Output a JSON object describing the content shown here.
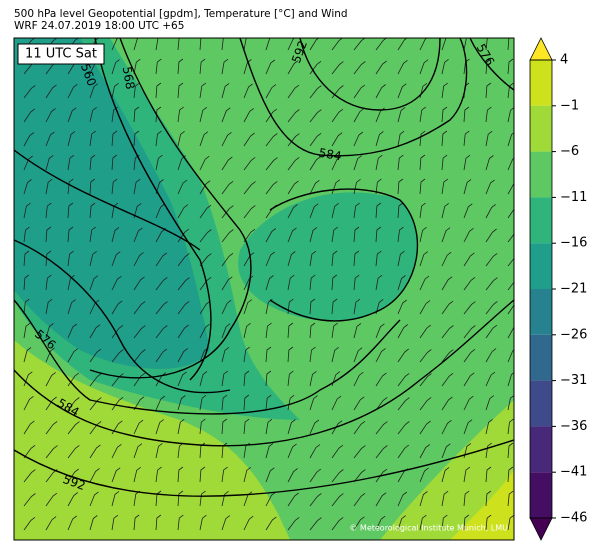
{
  "header": {
    "line1": "500 hPa level Geopotential [gpdm], Temperature [°C] and Wind",
    "line2": "WRF 24.07.2019 18:00 UTC +65"
  },
  "time_label": "11 UTC Sat",
  "contour_labels": [
    560,
    568,
    592,
    576,
    584,
    576,
    584,
    592
  ],
  "copyright": "© Meteorological Institute Munich, LMU",
  "colorbar": {
    "ticks": [
      {
        "value": 4,
        "label": "4"
      },
      {
        "value": -1,
        "label": "−1"
      },
      {
        "value": -6,
        "label": "−6"
      },
      {
        "value": -11,
        "label": "−11"
      },
      {
        "value": -16,
        "label": "−16"
      },
      {
        "value": -21,
        "label": "−21"
      },
      {
        "value": -26,
        "label": "−26"
      },
      {
        "value": -31,
        "label": "−31"
      },
      {
        "value": -36,
        "label": "−36"
      },
      {
        "value": -41,
        "label": "−41"
      },
      {
        "value": -46,
        "label": "−46"
      }
    ],
    "colors": [
      "#cde11d",
      "#a0da39",
      "#5ec962",
      "#2fb47c",
      "#1f9e89",
      "#26828e",
      "#31688e",
      "#3e4a89",
      "#482878",
      "#440f62"
    ],
    "over_color": "#fde725",
    "under_color": "#440154"
  }
}
